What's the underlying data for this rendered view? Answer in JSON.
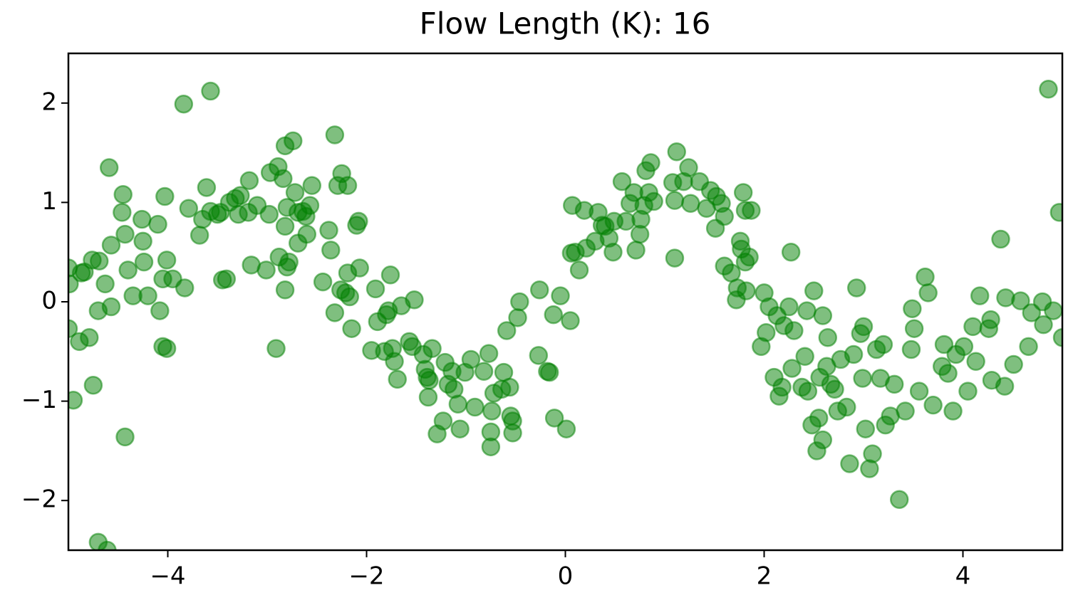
{
  "chart_data": {
    "type": "scatter",
    "title": "Flow Length (K): 16",
    "color": "#008000",
    "alpha": 0.5,
    "xlim": [
      -5,
      5
    ],
    "ylim": [
      -2.5,
      2.5
    ],
    "xticks": [
      {
        "value": -4,
        "label": "−4"
      },
      {
        "value": -2,
        "label": "−2"
      },
      0,
      2,
      4
    ],
    "yticks": [
      {
        "value": -2,
        "label": "−2"
      },
      {
        "value": -1,
        "label": "−1"
      },
      0,
      1,
      2
    ],
    "grid": false,
    "x": [
      -5.0,
      -4.99,
      -5.0,
      -4.95,
      -4.87,
      -4.84,
      -4.89,
      -4.79,
      -4.76,
      -4.69,
      -4.75,
      -4.7,
      -4.63,
      -4.57,
      -4.57,
      -4.59,
      -4.45,
      -4.46,
      -4.43,
      -4.4,
      -4.43,
      -4.7,
      -4.61,
      -4.35,
      -4.26,
      -4.25,
      -4.24,
      -4.2,
      -4.1,
      -4.08,
      -4.05,
      -4.03,
      -4.01,
      -4.05,
      -4.01,
      -3.95,
      -3.84,
      -3.83,
      -3.79,
      -3.68,
      -3.65,
      -3.61,
      -3.57,
      -3.57,
      -3.5,
      -3.47,
      -3.45,
      -3.41,
      -3.38,
      -3.32,
      -3.27,
      -3.29,
      -3.18,
      -3.16,
      -3.19,
      -3.1,
      -3.01,
      -2.98,
      -2.97,
      -2.91,
      -2.89,
      -2.88,
      -2.84,
      -2.82,
      -2.82,
      -2.82,
      -2.8,
      -2.78,
      -2.8,
      -2.74,
      -2.72,
      -2.69,
      -2.69,
      -2.64,
      -2.61,
      -2.6,
      -2.57,
      -2.55,
      -2.44,
      -2.38,
      -2.36,
      -2.32,
      -2.32,
      -2.29,
      -2.25,
      -2.26,
      -2.21,
      -2.17,
      -2.19,
      -2.19,
      -2.15,
      -2.1,
      -2.08,
      -2.07,
      -1.95,
      -1.91,
      -1.89,
      -1.82,
      -1.8,
      -1.78,
      -1.76,
      -1.74,
      -1.72,
      -1.69,
      -1.65,
      -1.57,
      -1.54,
      -1.52,
      -1.43,
      -1.41,
      -1.39,
      -1.38,
      -1.37,
      -1.34,
      -1.29,
      -1.23,
      -1.21,
      -1.18,
      -1.14,
      -1.12,
      -1.08,
      -1.06,
      -1.01,
      -0.95,
      -0.91,
      -0.82,
      -0.77,
      -0.75,
      -0.75,
      -0.74,
      -0.72,
      -0.64,
      -0.62,
      -0.59,
      -0.56,
      -0.55,
      -0.53,
      -0.53,
      -0.48,
      -0.46,
      -0.27,
      -0.26,
      -0.18,
      -0.16,
      -0.12,
      -0.11,
      -0.05,
      0.01,
      0.05,
      0.07,
      0.06,
      0.1,
      0.14,
      0.19,
      0.21,
      0.3,
      0.33,
      0.37,
      0.4,
      0.44,
      0.48,
      0.49,
      0.57,
      0.61,
      0.65,
      0.69,
      0.71,
      0.75,
      0.76,
      0.79,
      0.81,
      0.84,
      0.86,
      0.89,
      1.1,
      1.08,
      1.1,
      1.12,
      1.19,
      1.24,
      1.26,
      1.35,
      1.42,
      1.46,
      1.51,
      1.52,
      1.57,
      1.6,
      1.6,
      1.67,
      1.72,
      1.73,
      1.76,
      1.77,
      1.79,
      1.81,
      1.81,
      1.82,
      1.85,
      1.87,
      1.97,
      2.0,
      2.02,
      2.05,
      2.1,
      2.13,
      2.15,
      2.18,
      2.2,
      2.25,
      2.27,
      2.28,
      2.3,
      2.38,
      2.41,
      2.43,
      2.44,
      2.48,
      2.5,
      2.53,
      2.55,
      2.56,
      2.59,
      2.59,
      2.63,
      2.64,
      2.67,
      2.71,
      2.74,
      2.77,
      2.83,
      2.86,
      2.9,
      2.93,
      2.97,
      2.99,
      3.0,
      3.02,
      3.06,
      3.09,
      3.13,
      3.17,
      3.2,
      3.22,
      3.27,
      3.31,
      3.36,
      3.42,
      3.48,
      3.49,
      3.51,
      3.56,
      3.62,
      3.65,
      3.7,
      3.79,
      3.81,
      3.85,
      3.9,
      3.93,
      4.01,
      4.05,
      4.1,
      4.13,
      4.17,
      4.26,
      4.28,
      4.29,
      4.38,
      4.42,
      4.43,
      4.51,
      4.58,
      4.66,
      4.69,
      4.8,
      4.81,
      4.86,
      4.91,
      4.97,
      5.0
    ],
    "y": [
      0.34,
      0.18,
      -0.27,
      -0.99,
      0.29,
      0.3,
      -0.4,
      -0.36,
      0.42,
      0.41,
      -0.84,
      -0.09,
      0.18,
      -0.05,
      0.57,
      1.35,
      1.08,
      0.9,
      0.68,
      0.32,
      -1.36,
      -2.42,
      -2.5,
      0.06,
      0.83,
      0.61,
      0.4,
      0.06,
      0.78,
      -0.09,
      -0.45,
      1.06,
      0.42,
      0.23,
      -0.47,
      0.23,
      1.99,
      0.14,
      0.94,
      0.67,
      0.83,
      1.15,
      2.12,
      0.91,
      0.88,
      0.9,
      0.22,
      0.23,
      1.0,
      1.04,
      1.07,
      0.88,
      1.22,
      0.37,
      0.9,
      0.97,
      0.32,
      0.88,
      1.3,
      -0.47,
      1.36,
      0.45,
      1.24,
      1.57,
      0.76,
      0.12,
      0.35,
      0.4,
      0.95,
      1.62,
      1.1,
      0.9,
      0.59,
      0.91,
      0.86,
      0.68,
      0.97,
      1.17,
      0.2,
      0.72,
      0.52,
      -0.11,
      1.68,
      1.17,
      1.29,
      0.12,
      0.09,
      0.05,
      0.29,
      1.17,
      -0.27,
      0.77,
      0.81,
      0.34,
      -0.49,
      0.13,
      -0.2,
      -0.5,
      -0.13,
      -0.09,
      0.27,
      -0.47,
      -0.6,
      -0.78,
      -0.04,
      -0.4,
      -0.45,
      0.02,
      -0.53,
      -0.68,
      -0.76,
      -0.96,
      -0.79,
      -0.47,
      -1.33,
      -1.2,
      -0.61,
      -0.83,
      -0.7,
      -0.88,
      -1.03,
      -1.28,
      -0.71,
      -0.58,
      -1.06,
      -0.7,
      -0.52,
      -1.31,
      -1.46,
      -1.1,
      -0.92,
      -0.88,
      -0.71,
      -0.29,
      -0.86,
      -1.15,
      -1.32,
      -1.2,
      -0.16,
      0.0,
      -0.54,
      0.12,
      -0.7,
      -0.71,
      -0.13,
      -1.17,
      0.06,
      -1.28,
      -0.19,
      0.97,
      0.49,
      0.5,
      0.32,
      0.92,
      0.54,
      0.61,
      0.9,
      0.77,
      0.76,
      0.64,
      0.5,
      0.81,
      1.21,
      0.81,
      0.99,
      1.1,
      0.52,
      0.68,
      0.83,
      0.97,
      1.32,
      1.1,
      1.4,
      1.01,
      0.44,
      1.2,
      1.02,
      1.51,
      1.21,
      1.35,
      0.99,
      1.21,
      0.94,
      1.12,
      0.74,
      1.06,
      0.99,
      0.86,
      0.36,
      0.29,
      0.02,
      0.14,
      0.61,
      0.53,
      1.1,
      0.92,
      0.4,
      0.11,
      0.45,
      0.92,
      -0.45,
      0.09,
      -0.31,
      -0.05,
      -0.76,
      -0.14,
      -0.95,
      -0.86,
      -0.24,
      -0.05,
      0.5,
      -0.67,
      -0.29,
      -0.86,
      -0.55,
      -0.09,
      -0.9,
      -1.24,
      0.11,
      -1.5,
      -1.17,
      -0.76,
      -0.14,
      -1.39,
      -0.65,
      -0.36,
      -0.83,
      -0.88,
      -1.1,
      -0.58,
      -1.06,
      -1.63,
      -0.53,
      0.14,
      -0.32,
      -0.77,
      -0.25,
      -1.28,
      -1.68,
      -1.53,
      -0.48,
      -0.77,
      -0.43,
      -1.24,
      -1.15,
      -0.83,
      -1.99,
      -1.1,
      -0.48,
      -0.07,
      -0.27,
      -0.9,
      0.25,
      0.09,
      -1.04,
      -0.65,
      -0.43,
      -0.72,
      -1.1,
      -0.53,
      -0.45,
      -0.9,
      -0.25,
      -0.6,
      0.06,
      -0.27,
      -0.18,
      -0.79,
      0.63,
      -0.85,
      0.04,
      -0.63,
      0.01,
      -0.45,
      -0.11,
      0.0,
      -0.23,
      2.14,
      -0.09,
      0.9,
      -0.36
    ]
  }
}
